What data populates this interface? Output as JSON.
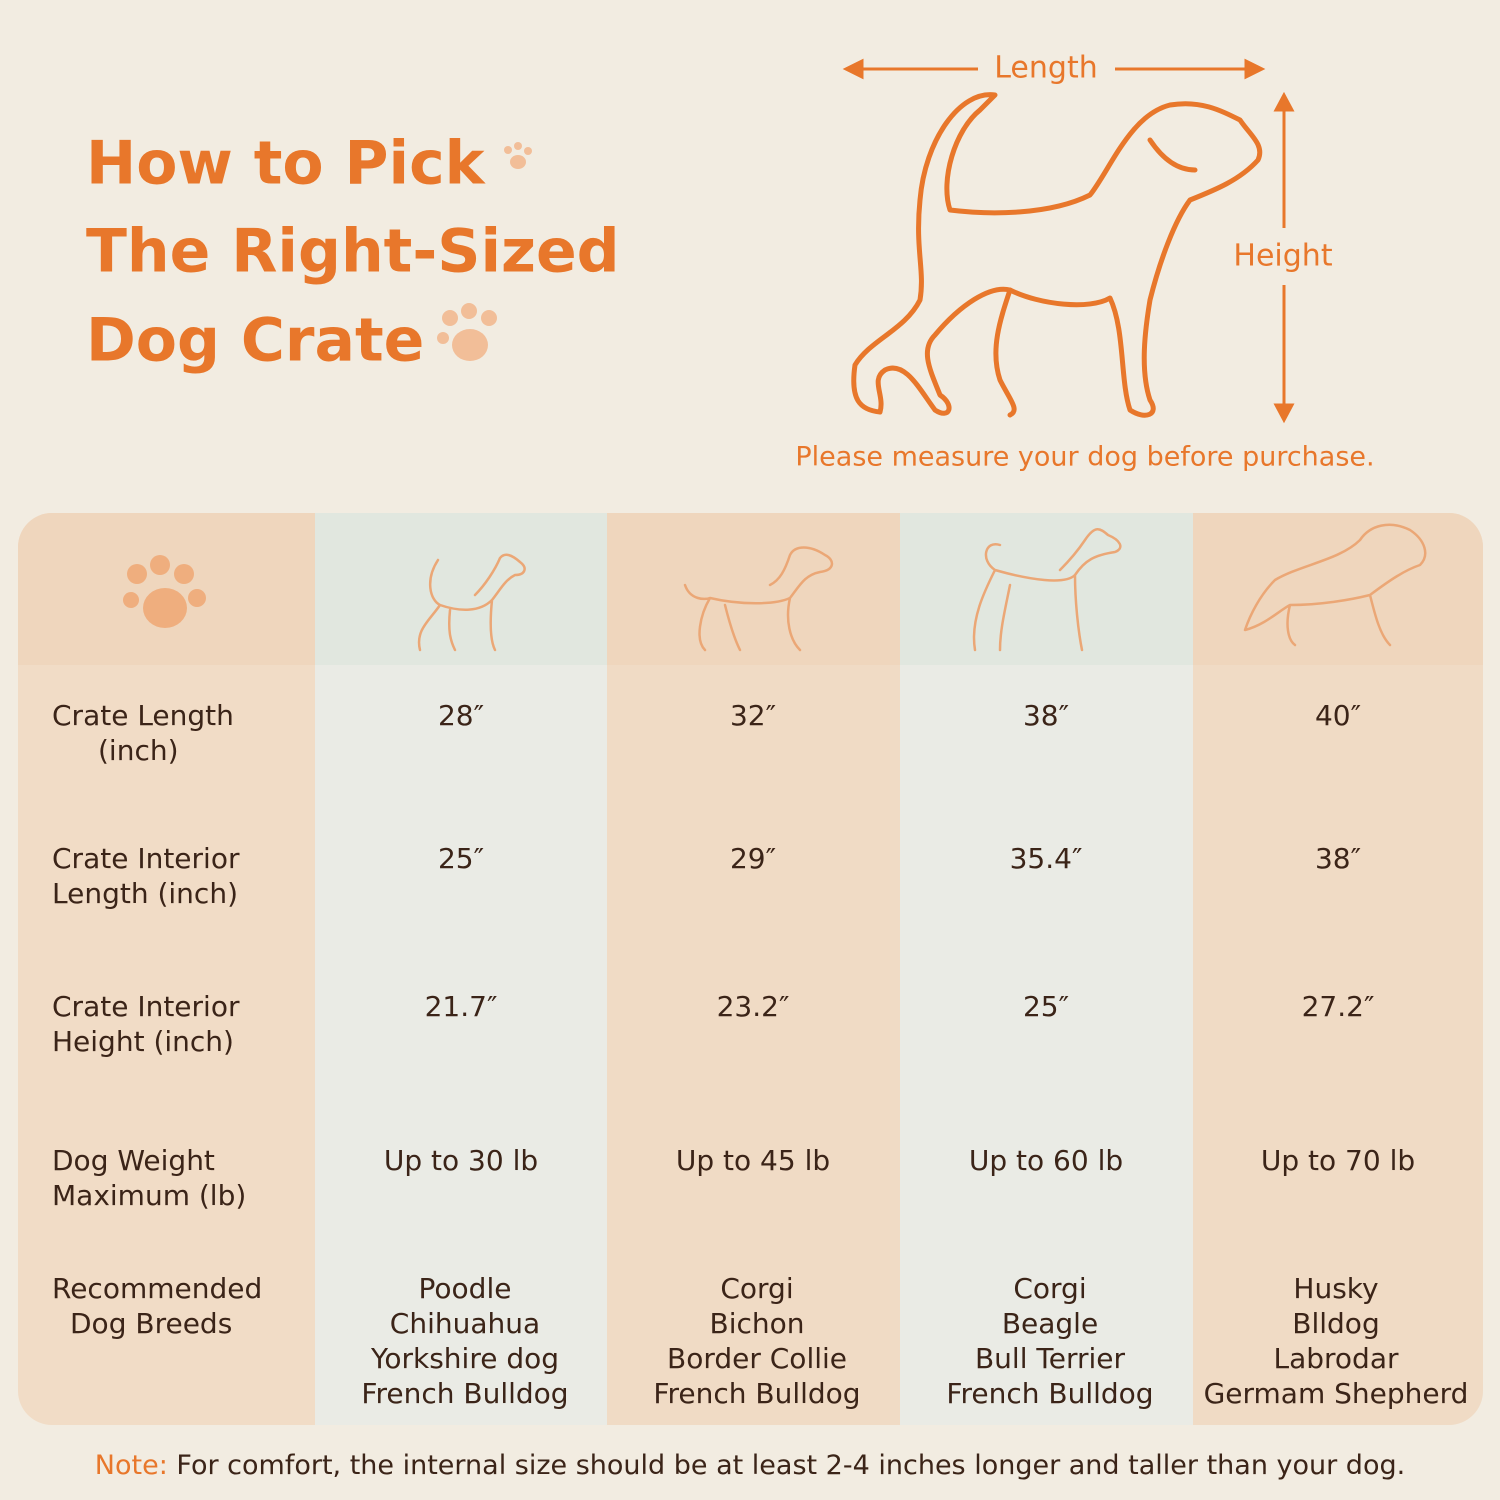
{
  "header": {
    "title_lines": [
      "How to Pick",
      "The Right-Sized",
      "Dog Crate"
    ]
  },
  "diagram": {
    "length_label": "Length",
    "height_label": "Height",
    "caption": "Please measure your dog before purchase."
  },
  "table": {
    "row_labels": [
      [
        "Crate Length",
        "(inch)"
      ],
      [
        "Crate Interior",
        "Length (inch)"
      ],
      [
        "Crate Interior",
        "Height (inch)"
      ],
      [
        "Dog Weight",
        "Maximum (lb)"
      ],
      [
        "Recommended",
        "Dog Breeds"
      ]
    ],
    "rows": [
      [
        "28″",
        "32″",
        "38″",
        "40″"
      ],
      [
        "25″",
        "29″",
        "35.4″",
        "38″"
      ],
      [
        "21.7″",
        "23.2″",
        "25″",
        "27.2″"
      ],
      [
        "Up to 30 lb",
        "Up to 45 lb",
        "Up to 60 lb",
        "Up to 70 lb"
      ]
    ],
    "breeds": [
      [
        "Poodle",
        "Chihuahua",
        "Yorkshire dog",
        "French Bulldog"
      ],
      [
        "Corgi",
        "Bichon",
        "Border Collie",
        "French Bulldog"
      ],
      [
        "Corgi",
        "Beagle",
        "Bull Terrier",
        "French Bulldog"
      ],
      [
        "Husky",
        "Blldog",
        "Labrodar",
        "Germam Shepherd"
      ]
    ]
  },
  "note": {
    "label": "Note:",
    "text": " For comfort, the internal size should be at least 2-4 inches longer and taller than your dog."
  }
}
